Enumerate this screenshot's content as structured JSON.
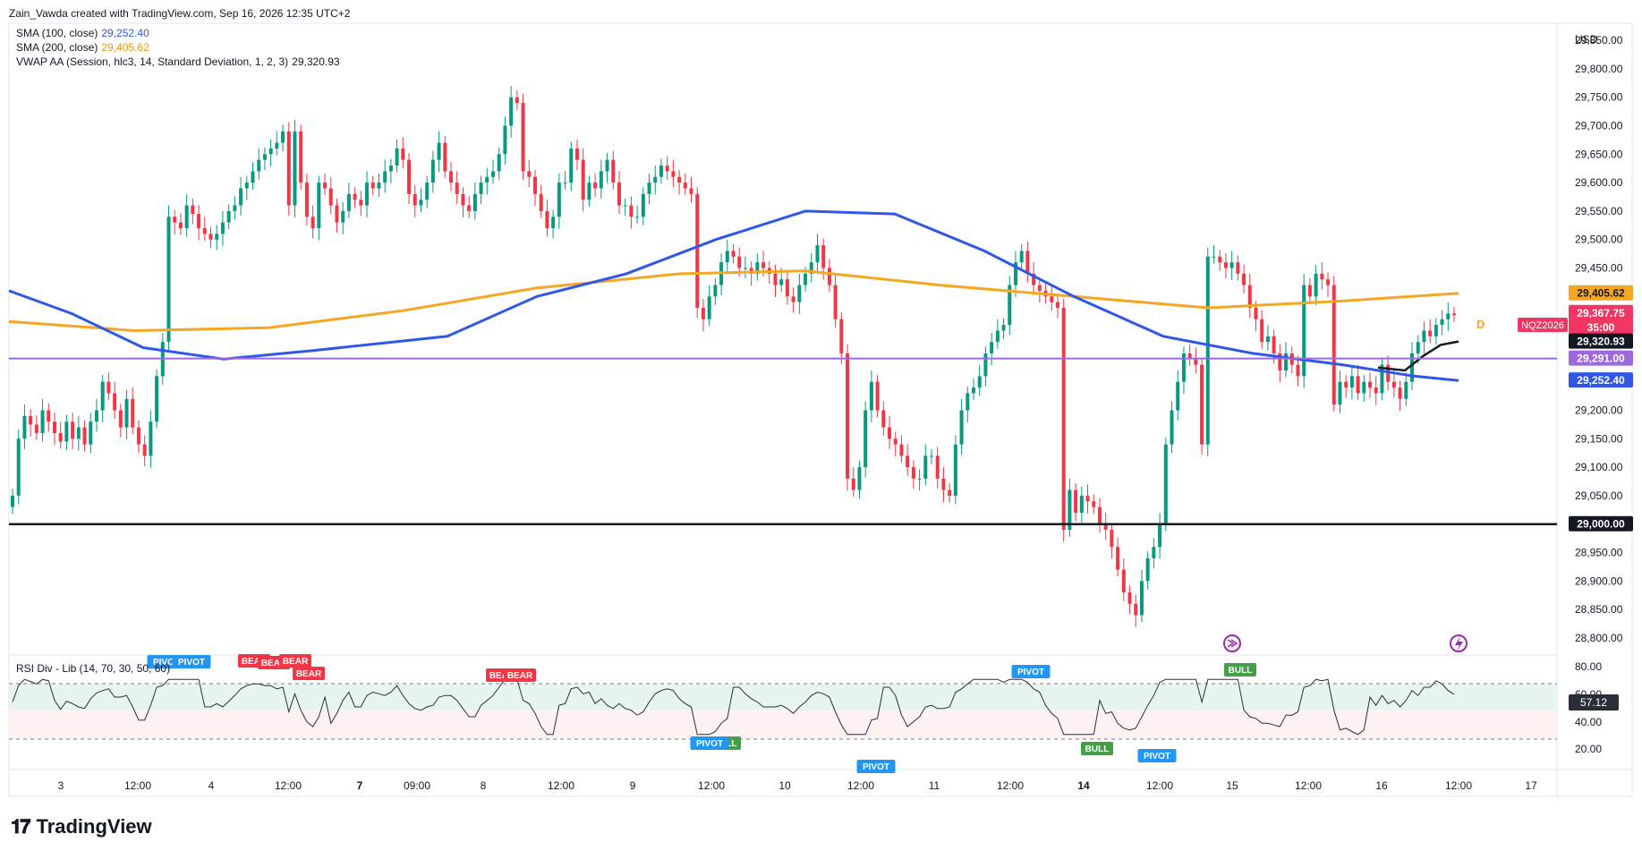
{
  "header": {
    "author_line": "Zain_Vawda created with TradingView.com, Sep 16, 2026 12:35 UTC+2"
  },
  "legend": [
    {
      "label": "SMA (100, close)",
      "value": "29,252.40",
      "color": "#2f57e8"
    },
    {
      "label": "SMA (200, close)",
      "value": "29,405.62",
      "color": "#f5a623"
    },
    {
      "label": "VWAP AA (Session, hlc3, 14, Standard Deviation, 1, 2, 3)",
      "value": "29,320.93",
      "color": "#131722"
    }
  ],
  "price_axis": {
    "currency": "USD",
    "ticks": [
      "29,850.00",
      "29,800.00",
      "29,750.00",
      "29,700.00",
      "29,650.00",
      "29,600.00",
      "29,550.00",
      "29,500.00",
      "29,450.00",
      "29,200.00",
      "29,150.00",
      "29,100.00",
      "29,050.00",
      "28,950.00",
      "28,900.00",
      "28,850.00",
      "28,800.00"
    ],
    "badges": [
      {
        "text": "29,405.62",
        "color": "#f5a623",
        "text_color": "#131722"
      },
      {
        "text": "29,367.75",
        "color": "#f23663",
        "text_color": "#ffffff"
      },
      {
        "text": "35:00",
        "color": "#f23663",
        "text_color": "#ffffff"
      },
      {
        "text": "29,320.93",
        "color": "#131722",
        "text_color": "#ffffff"
      },
      {
        "text": "29,291.00",
        "color": "#9c6ade",
        "text_color": "#ffffff"
      },
      {
        "text": "29,252.40",
        "color": "#2f57e8",
        "text_color": "#ffffff"
      },
      {
        "text": "29,000.00",
        "color": "#131722",
        "text_color": "#ffffff"
      }
    ],
    "symbol": "NQZ2026",
    "d_marker": "D"
  },
  "time_axis": [
    "3",
    "12:00",
    "4",
    "12:00",
    "7",
    "09:00",
    "8",
    "12:00",
    "9",
    "12:00",
    "10",
    "12:00",
    "11",
    "12:00",
    "14",
    "12:00",
    "15",
    "12:00",
    "16",
    "12:00",
    "17"
  ],
  "rsi": {
    "title": "RSI Div - Lib (14, 70, 30, 50, 60)",
    "ticks": [
      "80.00",
      "60.00",
      "40.00",
      "20.00"
    ],
    "current": "57.12",
    "labels": [
      "PIVOT",
      "PIVOT",
      "BEAR",
      "BEAR",
      "BEAR",
      "BEAR",
      "BEAR",
      "BEAR",
      "PIVOT",
      "BULL",
      "PIVOT",
      "PIVOT",
      "BULL",
      "BULL",
      "PIVOT"
    ]
  },
  "chart_data": {
    "type": "candlestick",
    "symbol": "NQZ2026",
    "ylim": [
      28770,
      29880
    ],
    "horizontal_lines": [
      29291,
      29000
    ],
    "sma100_last": 29252.4,
    "sma200_last": 29405.62,
    "vwap_last": 29320.93,
    "last_price": 29367.75,
    "closes": [
      29050,
      29150,
      29190,
      29175,
      29160,
      29200,
      29180,
      29160,
      29145,
      29180,
      29150,
      29170,
      29140,
      29180,
      29200,
      29250,
      29230,
      29200,
      29170,
      29220,
      29170,
      29140,
      29120,
      29180,
      29260,
      29320,
      29540,
      29530,
      29520,
      29560,
      29545,
      29520,
      29510,
      29500,
      29510,
      29530,
      29550,
      29560,
      29590,
      29600,
      29620,
      29640,
      29650,
      29660,
      29670,
      29690,
      29560,
      29690,
      29600,
      29540,
      29520,
      29600,
      29590,
      29560,
      29530,
      29550,
      29580,
      29570,
      29560,
      29600,
      29590,
      29600,
      29620,
      29630,
      29660,
      29640,
      29580,
      29560,
      29570,
      29600,
      29640,
      29670,
      29620,
      29600,
      29580,
      29560,
      29550,
      29580,
      29600,
      29610,
      29620,
      29650,
      29700,
      29750,
      29740,
      29620,
      29610,
      29580,
      29550,
      29520,
      29540,
      29600,
      29600,
      29660,
      29640,
      29570,
      29600,
      29590,
      29620,
      29640,
      29600,
      29560,
      29560,
      29540,
      29540,
      29580,
      29600,
      29610,
      29630,
      29620,
      29610,
      29600,
      29590,
      29580,
      29380,
      29360,
      29400,
      29420,
      29460,
      29480,
      29470,
      29450,
      29450,
      29440,
      29460,
      29450,
      29440,
      29420,
      29430,
      29400,
      29390,
      29420,
      29440,
      29460,
      29490,
      29450,
      29420,
      29360,
      29300,
      29080,
      29060,
      29100,
      29200,
      29250,
      29200,
      29170,
      29150,
      29140,
      29120,
      29100,
      29080,
      29080,
      29120,
      29120,
      29080,
      29060,
      29050,
      29140,
      29200,
      29230,
      29240,
      29260,
      29300,
      29320,
      29340,
      29350,
      29420,
      29460,
      29480,
      29440,
      29420,
      29410,
      29400,
      29390,
      29380,
      28990,
      29060,
      29020,
      29050,
      29040,
      29030,
      29000,
      28990,
      28960,
      28920,
      28880,
      28860,
      28840,
      28900,
      28940,
      28960,
      29000,
      29140,
      29200,
      29250,
      29300,
      29290,
      29280,
      29140,
      29470,
      29470,
      29460,
      29450,
      29460,
      29440,
      29420,
      29380,
      29360,
      29320,
      29330,
      29300,
      29270,
      29300,
      29280,
      29260,
      29420,
      29400,
      29440,
      29430,
      29420,
      29210,
      29250,
      29240,
      29260,
      29230,
      29250,
      29240,
      29230,
      29280,
      29250,
      29240,
      29220,
      29250,
      29300,
      29320,
      29340,
      29330,
      29350,
      29360,
      29370,
      29367
    ]
  }
}
